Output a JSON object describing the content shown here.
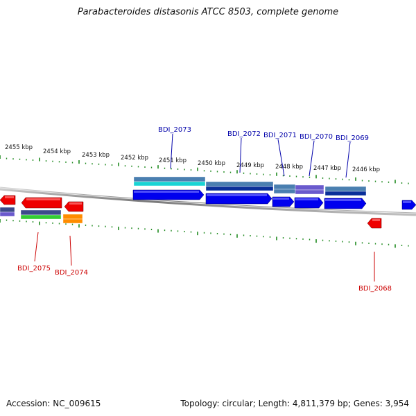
{
  "title": "Parabacteroides distasonis ATCC 8503, complete genome",
  "footer": {
    "accession": "Accession: NC_009615",
    "topology": "Topology: circular; Length: 4,811,379 bp; Genes: 3,954"
  },
  "colors": {
    "backbone": "#8a8a8a",
    "tick": "#1f8a1f",
    "forward_gene_label": "#0000aa",
    "reverse_gene_label": "#cc0000",
    "forward_cds": "#0000ee",
    "reverse_cds": "#ee0000",
    "cog_steel": "#4a7fb0",
    "cog_cyan": "#19d4d4",
    "cog_navy": "#0a2f99",
    "cog_purple": "#6a5acd",
    "cog_green": "#33cc33",
    "cog_orange": "#ff8c00",
    "cog_slate": "#3c4a8a"
  },
  "scale_labels": [
    "2455 kbp",
    "2454 kbp",
    "2453 kbp",
    "2452 kbp",
    "2451 kbp",
    "2450 kbp",
    "2449 kbp",
    "2448 kbp",
    "2447 kbp",
    "2446 kbp"
  ],
  "genes_forward": [
    {
      "label": "BDI_2073"
    },
    {
      "label": "BDI_2072"
    },
    {
      "label": "BDI_2071"
    },
    {
      "label": "BDI_2070"
    },
    {
      "label": "BDI_2069"
    }
  ],
  "genes_reverse": [
    {
      "label": "BDI_2075"
    },
    {
      "label": "BDI_2074"
    },
    {
      "label": "BDI_2068"
    }
  ]
}
